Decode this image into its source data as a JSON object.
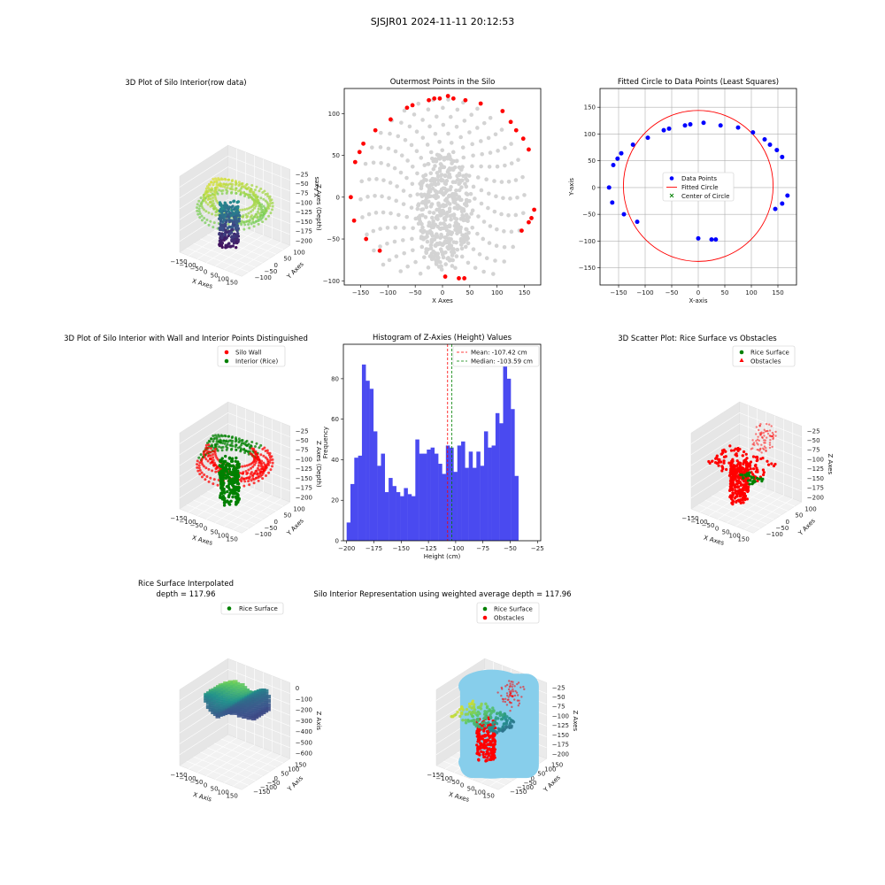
{
  "figure": {
    "suptitle": "SJSJR01 2024-11-11 20:12:53"
  },
  "colors": {
    "wall": "#ff0000",
    "rice": "#008000",
    "gray": "#d3d3d3",
    "blue": "#0000ff",
    "hist": "#4a4af0",
    "sky": "#87ceeb"
  },
  "chart_data": [
    {
      "id": "p1",
      "type": "scatter3d",
      "title": "3D Plot of Silo Interior(row data)",
      "xlabel": "X Axes",
      "ylabel": "Y Axes",
      "zlabel": "Z Axes (Depth)",
      "xticks": [
        "−150",
        "−100",
        "−50",
        "0",
        "50",
        "100",
        "150"
      ],
      "yticks": [
        "−100",
        "−50",
        "0",
        "50",
        "100"
      ],
      "zticks": [
        "−25",
        "−50",
        "−75",
        "−100",
        "−125",
        "−150",
        "−175",
        "−200"
      ]
    },
    {
      "id": "p2",
      "type": "scatter",
      "title": "Outermost Points in the Silo",
      "xlabel": "X Axes",
      "ylabel": "Y Axes",
      "xlim": [
        -180,
        180
      ],
      "ylim": [
        -105,
        130
      ],
      "xticks": [
        -150,
        -100,
        -50,
        0,
        50,
        100,
        150
      ],
      "yticks": [
        -100,
        -50,
        0,
        50,
        100
      ],
      "xtick_labels": [
        "−150",
        "−100",
        "−50",
        "0",
        "50",
        "100",
        "150"
      ],
      "ytick_labels": [
        "−100",
        "−50",
        "0",
        "50",
        "100"
      ],
      "outer_points": [
        [
          -168,
          0
        ],
        [
          -162,
          -28
        ],
        [
          -160,
          42
        ],
        [
          -152,
          54
        ],
        [
          -145,
          64
        ],
        [
          -140,
          -50
        ],
        [
          -123,
          80
        ],
        [
          -115,
          -64
        ],
        [
          -95,
          93
        ],
        [
          -65,
          107
        ],
        [
          -55,
          110
        ],
        [
          -25,
          116
        ],
        [
          -15,
          118
        ],
        [
          -5,
          118
        ],
        [
          5,
          -95
        ],
        [
          10,
          121
        ],
        [
          20,
          118
        ],
        [
          30,
          -97
        ],
        [
          40,
          -97
        ],
        [
          42,
          116
        ],
        [
          70,
          112
        ],
        [
          110,
          103
        ],
        [
          125,
          90
        ],
        [
          135,
          80
        ],
        [
          145,
          -40
        ],
        [
          148,
          70
        ],
        [
          158,
          -30
        ],
        [
          158,
          57
        ],
        [
          163,
          -25
        ],
        [
          168,
          -15
        ]
      ]
    },
    {
      "id": "p3",
      "type": "scatter",
      "title": "Fitted Circle to Data Points (Least Squares)",
      "xlabel": "X-axis",
      "ylabel": "Y-axis",
      "xlim": [
        -185,
        185
      ],
      "ylim": [
        -182,
        185
      ],
      "xticks": [
        -150,
        -100,
        -50,
        0,
        50,
        100,
        150
      ],
      "yticks": [
        -150,
        -100,
        -50,
        0,
        50,
        100,
        150
      ],
      "xtick_labels": [
        "−150",
        "−100",
        "−50",
        "0",
        "50",
        "100",
        "150"
      ],
      "ytick_labels": [
        "−150",
        "−100",
        "−50",
        "0",
        "50",
        "100",
        "150"
      ],
      "circle": {
        "cx": 0,
        "cy": 3,
        "r": 141
      },
      "legend": [
        "Data Points",
        "Fitted Circle",
        "Center of Circle"
      ],
      "points": [
        [
          -168,
          0
        ],
        [
          -162,
          -28
        ],
        [
          -160,
          42
        ],
        [
          -152,
          54
        ],
        [
          -145,
          64
        ],
        [
          -140,
          -50
        ],
        [
          -123,
          80
        ],
        [
          -115,
          -64
        ],
        [
          -95,
          93
        ],
        [
          -65,
          107
        ],
        [
          -55,
          110
        ],
        [
          -25,
          116
        ],
        [
          -15,
          118
        ],
        [
          0,
          -95
        ],
        [
          10,
          121
        ],
        [
          25,
          -97
        ],
        [
          33,
          -97
        ],
        [
          42,
          116
        ],
        [
          75,
          112
        ],
        [
          103,
          103
        ],
        [
          125,
          90
        ],
        [
          135,
          80
        ],
        [
          145,
          -40
        ],
        [
          148,
          70
        ],
        [
          158,
          57
        ],
        [
          158,
          -30
        ],
        [
          168,
          -15
        ]
      ]
    },
    {
      "id": "p4",
      "type": "scatter3d",
      "title": "3D Plot of Silo Interior with Wall and Interior Points Distinguished",
      "xlabel": "X Axes",
      "ylabel": "Y Axes",
      "zlabel": "Z Axes (Depth)",
      "legend": [
        "Silo Wall",
        "Interior (Rice)"
      ],
      "xticks": [
        "−150",
        "−100",
        "−50",
        "0",
        "50",
        "100",
        "150"
      ],
      "yticks": [
        "−100",
        "−50",
        "0",
        "50",
        "100"
      ],
      "zticks": [
        "−25",
        "−50",
        "−75",
        "−100",
        "−125",
        "−150",
        "−175",
        "−200"
      ]
    },
    {
      "id": "p5",
      "type": "bar",
      "title": "Histogram of Z-Axies (Height) Values",
      "xlabel": "Height (cm)",
      "ylabel": "Frequency",
      "xlim": [
        -203,
        -22
      ],
      "ylim": [
        0,
        97
      ],
      "xticks": [
        -200,
        -175,
        -150,
        -125,
        -100,
        -75,
        -50,
        -25
      ],
      "yticks": [
        0,
        20,
        40,
        60,
        80
      ],
      "xtick_labels": [
        "−200",
        "−175",
        "−150",
        "−125",
        "−100",
        "−75",
        "−50",
        "−25"
      ],
      "ytick_labels": [
        "0",
        "20",
        "40",
        "60",
        "80"
      ],
      "bin_start": -200,
      "bin_width": 3.5,
      "values": [
        9,
        28,
        41,
        42,
        87,
        79,
        75,
        54,
        37,
        43,
        24,
        31,
        27,
        24,
        22,
        26,
        23,
        22,
        50,
        43,
        43,
        45,
        46,
        43,
        38,
        33,
        47,
        46,
        34,
        47,
        49,
        36,
        44,
        36,
        44,
        37,
        54,
        46,
        47,
        63,
        58,
        87,
        80,
        65,
        32
      ],
      "lines": [
        {
          "value": -107.42,
          "color": "#ff0000",
          "label": "Mean: -107.42 cm"
        },
        {
          "value": -103.59,
          "color": "#008000",
          "label": "Median: -103.59 cm"
        }
      ]
    },
    {
      "id": "p6",
      "type": "scatter3d",
      "title": "3D Scatter Plot: Rice Surface vs Obstacles",
      "xlabel": "X Axes",
      "ylabel": "Y Axes",
      "zlabel": "Z Axes",
      "legend": [
        "Rice Surface",
        "Obstacles"
      ],
      "xticks": [
        "−150",
        "−100",
        "−50",
        "0",
        "50",
        "100",
        "150"
      ],
      "yticks": [
        "−100",
        "−50",
        "0",
        "50",
        "100"
      ],
      "zticks": [
        "−25",
        "−50",
        "−75",
        "−100",
        "−125",
        "−150",
        "−175",
        "−200"
      ]
    },
    {
      "id": "p7",
      "type": "surface3d",
      "title": "Rice Surface Interpolated",
      "subtitle": "depth = 117.96",
      "xlabel": "X Axis",
      "ylabel": "Y Axis",
      "zlabel": "Z Axis",
      "legend": [
        "Rice Surface"
      ],
      "xticks": [
        "−150",
        "−100",
        "−50",
        "0",
        "50",
        "100",
        "150"
      ],
      "yticks": [
        "−150",
        "−100",
        "−50",
        "0",
        "50",
        "100",
        "150"
      ],
      "zticks": [
        "0",
        "−100",
        "−200",
        "−300",
        "−400",
        "−500",
        "−600"
      ]
    },
    {
      "id": "p8",
      "type": "scatter3d",
      "title": "Silo Interior Representation using weighted average depth = 117.96",
      "xlabel": "X Axes",
      "ylabel": "Y Axes",
      "zlabel": "Z Axes",
      "legend": [
        "Rice Surface",
        "Obstacles"
      ],
      "xticks": [
        "−150",
        "−100",
        "−50",
        "0",
        "50",
        "100",
        "150"
      ],
      "yticks": [
        "−150",
        "−100",
        "−50",
        "0",
        "50",
        "100",
        "150"
      ],
      "zticks": [
        "−25",
        "−50",
        "−75",
        "−100",
        "−125",
        "−150",
        "−175",
        "−200"
      ]
    }
  ]
}
